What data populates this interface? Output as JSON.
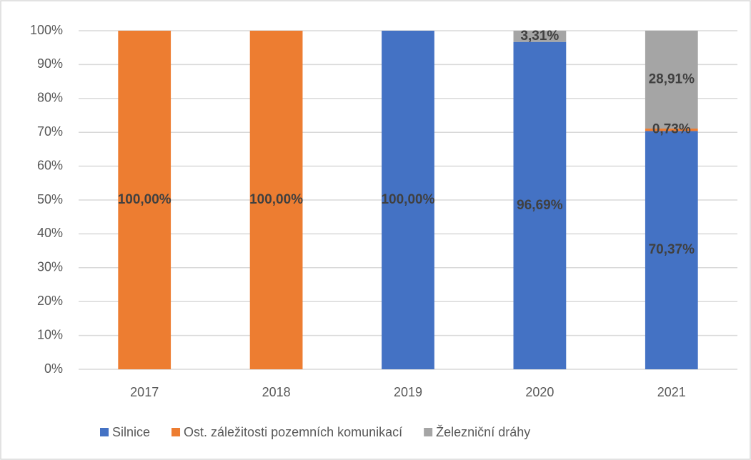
{
  "chart_data": {
    "type": "stacked-bar",
    "categories": [
      "2017",
      "2018",
      "2019",
      "2020",
      "2021"
    ],
    "series": [
      {
        "name": "Silnice",
        "color": "#4472c4",
        "values": [
          0,
          0,
          100,
          96.69,
          70.37
        ],
        "value_labels": [
          null,
          null,
          "100,00%",
          "96,69%",
          "70,37%"
        ]
      },
      {
        "name": "Ost. záležitosti pozemních komunikací",
        "color": "#ed7d31",
        "values": [
          100,
          100,
          0,
          0,
          0.73
        ],
        "value_labels": [
          "100,00%",
          "100,00%",
          null,
          null,
          "0,73%"
        ]
      },
      {
        "name": "Železniční dráhy",
        "color": "#a5a5a5",
        "values": [
          0,
          0,
          0,
          3.31,
          28.91
        ],
        "value_labels": [
          null,
          null,
          null,
          "3,31%",
          "28,91%"
        ]
      }
    ],
    "ylim": [
      0,
      100
    ],
    "yticks": [
      {
        "value": 0,
        "label": "0%"
      },
      {
        "value": 10,
        "label": "10%"
      },
      {
        "value": 20,
        "label": "20%"
      },
      {
        "value": 30,
        "label": "30%"
      },
      {
        "value": 40,
        "label": "40%"
      },
      {
        "value": 50,
        "label": "50%"
      },
      {
        "value": 60,
        "label": "60%"
      },
      {
        "value": 70,
        "label": "70%"
      },
      {
        "value": 80,
        "label": "80%"
      },
      {
        "value": 90,
        "label": "90%"
      },
      {
        "value": 100,
        "label": "100%"
      }
    ],
    "grid": true,
    "legend": "bottom"
  }
}
